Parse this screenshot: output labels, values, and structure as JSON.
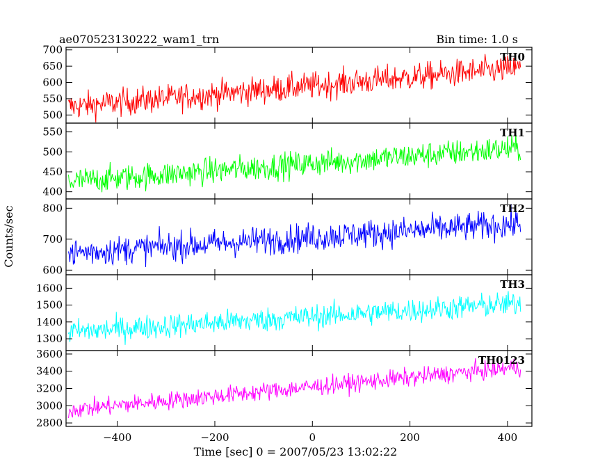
{
  "chart_data": {
    "type": "line",
    "title": "ae070523130222_wam1_trn",
    "subtitle": "Bin time: 1.0 s",
    "xlabel": "Time [sec] 0 = 2007/05/23 13:02:22",
    "ylabel": "Counts/sec",
    "xlim": [
      -505,
      450
    ],
    "x_range": [
      -500,
      428
    ],
    "xticks": [
      -400,
      -200,
      0,
      200,
      400
    ],
    "grid": false,
    "panels": [
      {
        "name": "TH0",
        "color": "#ff0000",
        "ylim": [
          475,
          708
        ],
        "yticks": [
          500,
          550,
          600,
          650,
          700
        ],
        "trend_start": 525,
        "trend_end": 645,
        "noise": 38
      },
      {
        "name": "TH1",
        "color": "#00ff00",
        "ylim": [
          382,
          572
        ],
        "yticks": [
          400,
          450,
          500,
          550
        ],
        "trend_start": 425,
        "trend_end": 510,
        "noise": 30
      },
      {
        "name": "TH2",
        "color": "#0000ff",
        "ylim": [
          585,
          830
        ],
        "yticks": [
          600,
          700,
          800
        ],
        "trend_start": 655,
        "trend_end": 750,
        "noise": 42
      },
      {
        "name": "TH3",
        "color": "#00ffff",
        "ylim": [
          1230,
          1680
        ],
        "yticks": [
          1300,
          1400,
          1500,
          1600
        ],
        "trend_start": 1340,
        "trend_end": 1510,
        "noise": 65
      },
      {
        "name": "TH0123",
        "color": "#ff00ff",
        "ylim": [
          2760,
          3640
        ],
        "yticks": [
          2800,
          3000,
          3200,
          3400,
          3600
        ],
        "trend_start": 2950,
        "trend_end": 3450,
        "noise": 95
      }
    ]
  }
}
